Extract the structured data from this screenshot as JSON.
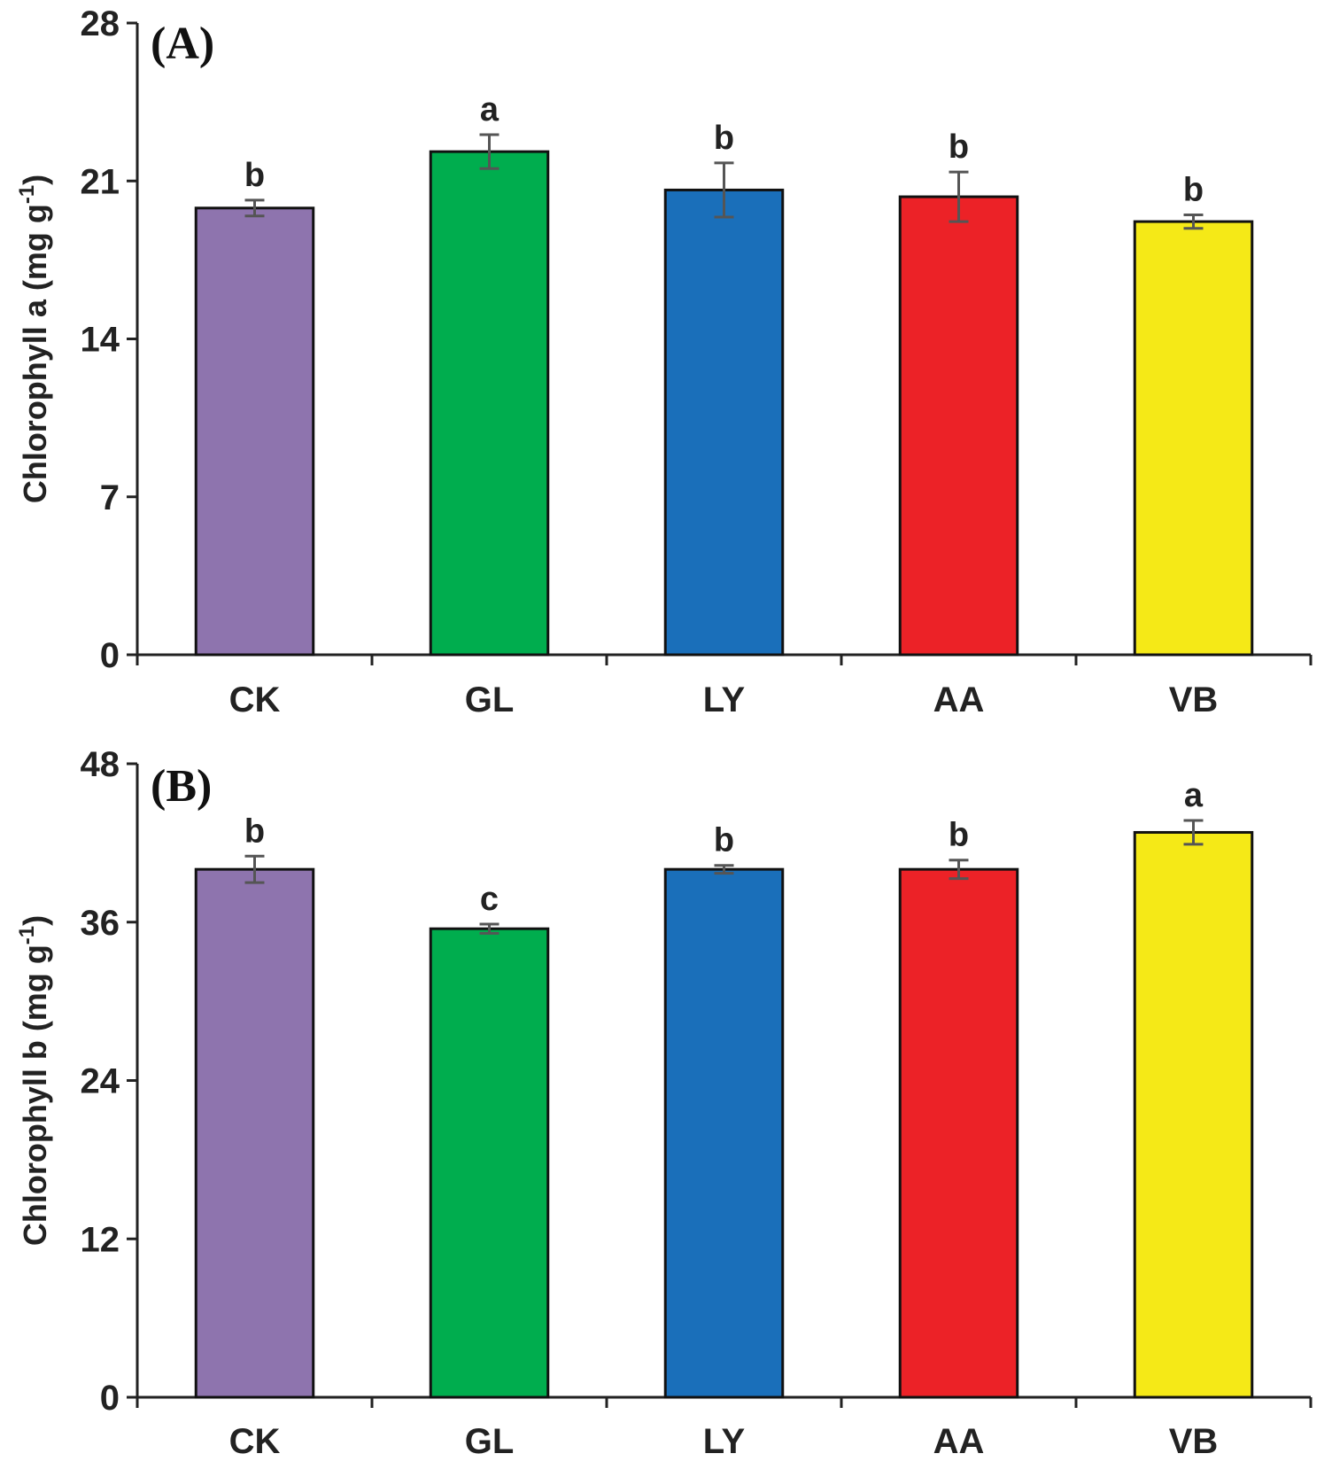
{
  "chart_data": [
    {
      "type": "bar",
      "panel_label": "(A)",
      "categories": [
        "CK",
        "GL",
        "LY",
        "AA",
        "VB"
      ],
      "values": [
        19.8,
        22.3,
        20.6,
        20.3,
        19.2
      ],
      "errors": [
        0.35,
        0.75,
        1.2,
        1.1,
        0.3
      ],
      "significance": [
        "b",
        "a",
        "b",
        "b",
        "b"
      ],
      "colors": [
        "#8e74ae",
        "#00ad4e",
        "#1a6fba",
        "#ec2227",
        "#f5e917"
      ],
      "ylabel_main": "Chlorophyll a (mg g",
      "ylabel_sup": "-1",
      "ylabel_end": ")",
      "yticks": [
        "0",
        "7",
        "14",
        "21",
        "28"
      ],
      "ylim": [
        0,
        28
      ]
    },
    {
      "type": "bar",
      "panel_label": "(B)",
      "categories": [
        "CK",
        "GL",
        "LY",
        "AA",
        "VB"
      ],
      "values": [
        40.0,
        35.5,
        40.0,
        40.0,
        42.8
      ],
      "errors": [
        1.0,
        0.35,
        0.3,
        0.7,
        0.9
      ],
      "significance": [
        "b",
        "c",
        "b",
        "b",
        "a"
      ],
      "colors": [
        "#8e74ae",
        "#00ad4e",
        "#1a6fba",
        "#ec2227",
        "#f5e917"
      ],
      "ylabel_main": "Chlorophyll b (mg g",
      "ylabel_sup": "-1",
      "ylabel_end": ")",
      "yticks": [
        "0",
        "12",
        "24",
        "36",
        "48"
      ],
      "ylim": [
        0,
        48
      ]
    }
  ]
}
